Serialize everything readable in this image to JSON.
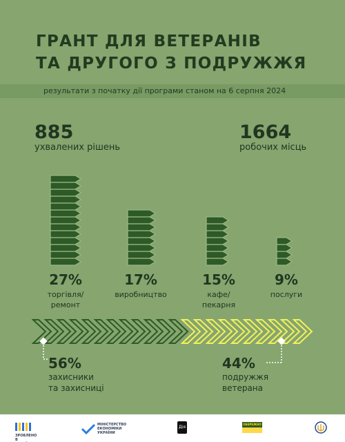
{
  "header": {
    "title_line1": "ГРАНТ ДЛЯ ВЕТЕРАНІВ",
    "title_line2": "ТА ДРУГОГО З ПОДРУЖЖЯ",
    "subtitle": "результати з початку дії програми станом на 6 серпня 2024"
  },
  "stats": {
    "decisions_value": "885",
    "decisions_label": "ухвалених рішень",
    "jobs_value": "1664",
    "jobs_label": "робочих місць"
  },
  "sectors": [
    {
      "percent_label": "27%",
      "name_line1": "торгівля/",
      "name_line2": "ремонт",
      "value": 27
    },
    {
      "percent_label": "17%",
      "name_line1": "виробництво",
      "name_line2": "",
      "value": 17
    },
    {
      "percent_label": "15%",
      "name_line1": "кафе/",
      "name_line2": "пекарня",
      "value": 15
    },
    {
      "percent_label": "9%",
      "name_line1": "послуги",
      "name_line2": "",
      "value": 9
    }
  ],
  "recipients": {
    "defenders_pct": "56%",
    "defenders_line1": "захисники",
    "defenders_line2": "та захисниці",
    "defenders_value": 56,
    "spouses_pct": "44%",
    "spouses_line1": "подружжя",
    "spouses_line2": "ветерана",
    "spouses_value": 44
  },
  "footer": {
    "logo1_text": "ЗРОБЛЕНО В УКРАЇНІ",
    "logo2_line1": "МІНІСТЕРСТВО",
    "logo2_line2": "ЕКОНОМІКИ",
    "logo2_line3": "УКРАЇНИ",
    "logo3_text": "Дія",
    "logo4_text": "ОБЕРЕЖНО"
  },
  "colors": {
    "background": "#86a56f",
    "dark_green": "#2d5a26",
    "yellow": "#f3f15b",
    "text": "#213620"
  }
}
